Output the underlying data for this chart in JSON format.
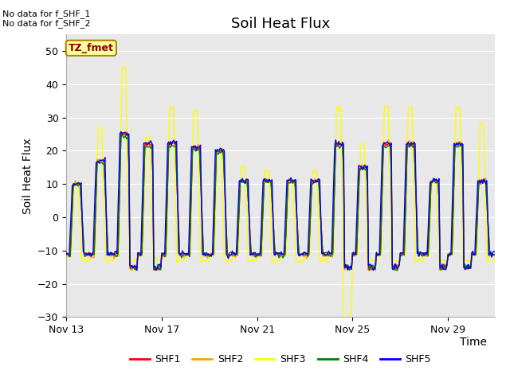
{
  "title": "Soil Heat Flux",
  "ylabel": "Soil Heat Flux",
  "xlabel": "Time",
  "ylim": [
    -30,
    55
  ],
  "yticks": [
    -30,
    -20,
    -10,
    0,
    10,
    20,
    30,
    40,
    50
  ],
  "bg_color": "#e8e8e8",
  "no_data_text_1": "No data for f_SHF_1",
  "no_data_text_2": "No data for f_SHF_2",
  "tz_label": "TZ_fmet",
  "legend_labels": [
    "SHF1",
    "SHF2",
    "SHF3",
    "SHF4",
    "SHF5"
  ],
  "legend_colors": [
    "#ff0000",
    "#ffa500",
    "#ffff00",
    "#008000",
    "#0000ff"
  ],
  "xtick_labels": [
    "Nov 13",
    "Nov 17",
    "Nov 21",
    "Nov 25",
    "Nov 29"
  ],
  "xtick_positions": [
    0,
    96,
    192,
    288,
    384
  ],
  "total_points": 432,
  "points_per_day": 24
}
